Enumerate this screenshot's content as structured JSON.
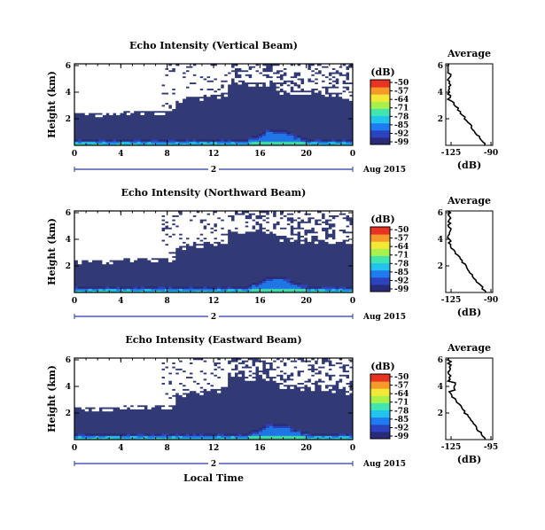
{
  "chart_data": [
    {
      "type": "heatmap",
      "title": "Echo Intensity (Vertical Beam)",
      "ylabel": "Height (km)",
      "xticks": [
        "0",
        "4",
        "8",
        "12",
        "16",
        "20",
        "0"
      ],
      "yticks": [
        "6",
        "4",
        "2"
      ],
      "date_label": "2",
      "date_suffix": "Aug 2015",
      "colorbar": {
        "label": "(dB)",
        "ticks": [
          "-50",
          "-57",
          "-64",
          "-71",
          "-78",
          "-85",
          "-92",
          "-99"
        ]
      },
      "average": {
        "title": "Average",
        "xticks": [
          "-125",
          "-90"
        ],
        "yticks": [
          "6",
          "4",
          "2"
        ],
        "xlabel": "(dB)"
      }
    },
    {
      "type": "heatmap",
      "title": "Echo Intensity (Northward Beam)",
      "ylabel": "Height (km)",
      "xticks": [
        "0",
        "4",
        "8",
        "12",
        "16",
        "20",
        "0"
      ],
      "yticks": [
        "6",
        "4",
        "2"
      ],
      "date_label": "2",
      "date_suffix": "Aug 2015",
      "colorbar": {
        "label": "(dB)",
        "ticks": [
          "-50",
          "-57",
          "-64",
          "-71",
          "-78",
          "-85",
          "-92",
          "-99"
        ]
      },
      "average": {
        "title": "Average",
        "xticks": [
          "-125",
          "-90"
        ],
        "yticks": [
          "6",
          "4",
          "2"
        ],
        "xlabel": "(dB)"
      }
    },
    {
      "type": "heatmap",
      "title": "Echo Intensity (Eastward Beam)",
      "ylabel": "Height (km)",
      "xticks": [
        "0",
        "4",
        "8",
        "12",
        "16",
        "20",
        "0"
      ],
      "yticks": [
        "6",
        "4",
        "2"
      ],
      "date_label": "2",
      "date_suffix": "Aug 2015",
      "xlabel": "Local Time",
      "colorbar": {
        "label": "(dB)",
        "ticks": [
          "-50",
          "-57",
          "-64",
          "-71",
          "-78",
          "-85",
          "-92",
          "-99"
        ]
      },
      "average": {
        "title": "Average",
        "xticks": [
          "-125",
          "-95"
        ],
        "yticks": [
          "6",
          "4",
          "2"
        ],
        "xlabel": "(dB)"
      }
    }
  ],
  "colors": {
    "background_echo": "#313a74",
    "no_data": "#ffffff",
    "colormap": [
      "#2a2a7a",
      "#2c43c0",
      "#1e7cf0",
      "#22c4ee",
      "#3fe6b0",
      "#a8f04a",
      "#f4e836",
      "#f59a2a",
      "#e83222"
    ]
  }
}
